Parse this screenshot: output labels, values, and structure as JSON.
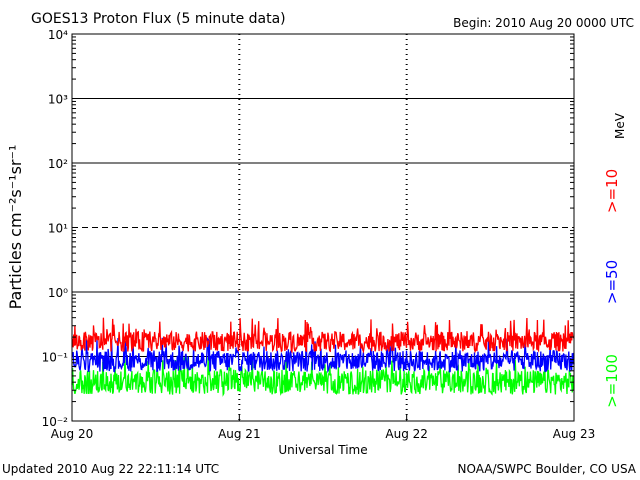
{
  "header": {
    "title": "GOES13 Proton Flux (5 minute data)",
    "begin": "Begin: 2010 Aug 20 0000 UTC"
  },
  "footer": {
    "updated": "Updated 2010 Aug 22 22:11:14 UTC",
    "credit": "NOAA/SWPC Boulder, CO USA"
  },
  "chart_data": {
    "type": "line",
    "title": "GOES13 Proton Flux (5 minute data)",
    "xlabel": "Universal Time",
    "ylabel": "Particles cm⁻²s⁻¹sr⁻¹",
    "y_scale": "log",
    "ylim": [
      0.01,
      10000
    ],
    "y_ticks": [
      {
        "value": 10000,
        "label": "10⁴"
      },
      {
        "value": 1000,
        "label": "10³"
      },
      {
        "value": 100,
        "label": "10²"
      },
      {
        "value": 10,
        "label": "10¹"
      },
      {
        "value": 1,
        "label": "10⁰"
      },
      {
        "value": 0.1,
        "label": "10⁻¹"
      },
      {
        "value": 0.01,
        "label": "10⁻²"
      }
    ],
    "x_ticks": [
      "Aug 20",
      "Aug 21",
      "Aug 22",
      "Aug 23"
    ],
    "xlim": [
      "2010-08-20",
      "2010-08-23"
    ],
    "threshold_lines": [
      {
        "value": 10,
        "style": "dashed"
      }
    ],
    "units_label": "MeV",
    "series": [
      {
        "name": ">=10",
        "color": "#ff0000",
        "values_typical": 0.17,
        "values_range": [
          0.11,
          0.4
        ]
      },
      {
        "name": ">=50",
        "color": "#0000ff",
        "values_typical": 0.085,
        "values_range": [
          0.05,
          0.2
        ]
      },
      {
        "name": ">=100",
        "color": "#00ff00",
        "values_typical": 0.04,
        "values_range": [
          0.02,
          0.1
        ]
      }
    ]
  }
}
